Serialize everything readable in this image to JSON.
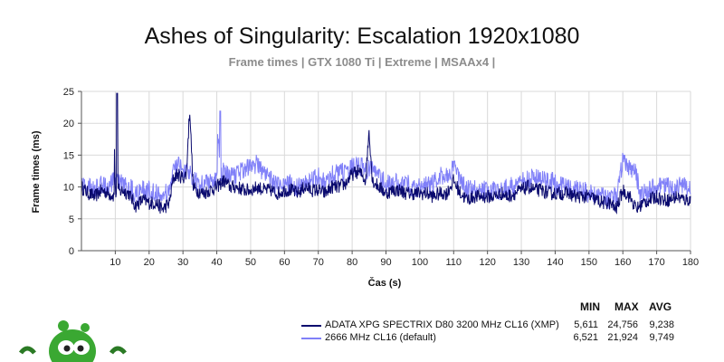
{
  "chart_data": {
    "type": "line",
    "title": "Ashes of Singularity: Escalation 1920x1080",
    "subtitle": "Frame times | GTX 1080 Ti | Extreme | MSAAx4 |",
    "xlabel": "Čas (s)",
    "ylabel": "Frame times (ms)",
    "xlim": [
      0,
      180
    ],
    "ylim": [
      0,
      25
    ],
    "xticks": [
      10,
      20,
      30,
      40,
      50,
      60,
      70,
      80,
      90,
      100,
      110,
      120,
      130,
      140,
      150,
      160,
      170,
      180
    ],
    "yticks": [
      0,
      5,
      10,
      15,
      20,
      25
    ],
    "grid": true,
    "legend_position": "bottom-right",
    "stat_headers": [
      "MIN",
      "MAX",
      "AVG"
    ],
    "series": [
      {
        "name": "ADATA XPG SPECTRIX D80 3200 MHz CL16 (XMP)",
        "color": "#0a0a6e",
        "min": "5,611",
        "max": "24,756",
        "avg": "9,238",
        "x": [
          0,
          2,
          4,
          6,
          8,
          10,
          10.5,
          11,
          12,
          14,
          16,
          17,
          18,
          20,
          22,
          24,
          26,
          27,
          28,
          30,
          31,
          32,
          33,
          34,
          36,
          38,
          40,
          42,
          44,
          46,
          48,
          50,
          52,
          54,
          56,
          58,
          60,
          62,
          64,
          66,
          68,
          70,
          72,
          74,
          76,
          78,
          80,
          82,
          84,
          85,
          86,
          88,
          90,
          92,
          94,
          96,
          98,
          100,
          102,
          104,
          106,
          108,
          110,
          112,
          114,
          116,
          118,
          120,
          122,
          124,
          126,
          128,
          130,
          132,
          134,
          136,
          138,
          140,
          142,
          144,
          146,
          148,
          150,
          152,
          154,
          156,
          158,
          160,
          162,
          164,
          165,
          166,
          168,
          170,
          172,
          174,
          176,
          178,
          180
        ],
        "y": [
          10,
          9,
          8.5,
          9.5,
          9,
          8.5,
          24.7,
          9,
          9.5,
          9,
          7,
          7.5,
          8,
          7.5,
          7.5,
          6.5,
          7.5,
          11,
          12,
          11.5,
          12,
          22.4,
          10,
          9.5,
          9,
          9.5,
          10,
          11,
          10,
          10,
          9.5,
          9.5,
          10,
          9.5,
          9.5,
          9,
          9.5,
          9.5,
          9,
          10,
          9.5,
          9.5,
          9,
          10,
          10,
          10.5,
          12,
          12.5,
          11,
          19,
          11,
          10,
          9,
          9.5,
          9.5,
          9,
          9,
          9,
          9,
          8.5,
          9,
          9,
          11,
          9,
          8,
          8.5,
          8.5,
          8.5,
          8.5,
          9,
          8.5,
          9,
          9.5,
          10,
          9.5,
          9.5,
          9,
          9,
          9,
          9,
          8.5,
          8.5,
          8.5,
          8,
          7.5,
          7.5,
          6.5,
          9.5,
          8.5,
          6.5,
          7,
          7.5,
          8,
          8.5,
          8,
          8,
          8.5,
          8,
          8
        ]
      },
      {
        "name": "2666 MHz CL16 (default)",
        "color": "#8080f8",
        "min": "6,521",
        "max": "21,924",
        "avg": "9,749",
        "x": [
          0,
          2,
          4,
          6,
          8,
          10,
          12,
          14,
          16,
          18,
          20,
          22,
          24,
          26,
          27,
          28,
          30,
          32,
          34,
          36,
          38,
          40,
          41,
          42,
          44,
          46,
          48,
          50,
          52,
          54,
          56,
          58,
          60,
          62,
          64,
          66,
          68,
          70,
          72,
          74,
          76,
          78,
          80,
          82,
          84,
          86,
          88,
          90,
          92,
          94,
          96,
          98,
          100,
          102,
          104,
          106,
          108,
          110,
          112,
          114,
          116,
          118,
          120,
          122,
          124,
          126,
          128,
          130,
          132,
          134,
          136,
          138,
          140,
          142,
          144,
          146,
          148,
          150,
          152,
          154,
          156,
          158,
          160,
          162,
          164,
          165,
          166,
          168,
          170,
          172,
          174,
          176,
          178,
          180
        ],
        "y": [
          10.5,
          10,
          9.5,
          10.5,
          10,
          11,
          10.5,
          10,
          9,
          9.5,
          9.5,
          9,
          8.5,
          9.5,
          12,
          13.5,
          13,
          12,
          11,
          10.5,
          11,
          11.5,
          21.9,
          12,
          11.5,
          12,
          13,
          13.5,
          13.5,
          12,
          11,
          10,
          10.5,
          10.5,
          10,
          10.5,
          11,
          11.5,
          11,
          12,
          12,
          12.5,
          13,
          13.5,
          12.5,
          13,
          11.5,
          10.5,
          10.5,
          10.5,
          10.5,
          10,
          10,
          10.5,
          10.5,
          11.5,
          12,
          13,
          11,
          9.5,
          9.5,
          9.5,
          9.5,
          9.5,
          9.5,
          10,
          10,
          11,
          11,
          11.5,
          11,
          11,
          10.5,
          10,
          10,
          9.5,
          9.5,
          9,
          9,
          8.5,
          8,
          8.5,
          14,
          13,
          12,
          9,
          9,
          9.5,
          10,
          10,
          10,
          10,
          10,
          10
        ]
      }
    ]
  }
}
